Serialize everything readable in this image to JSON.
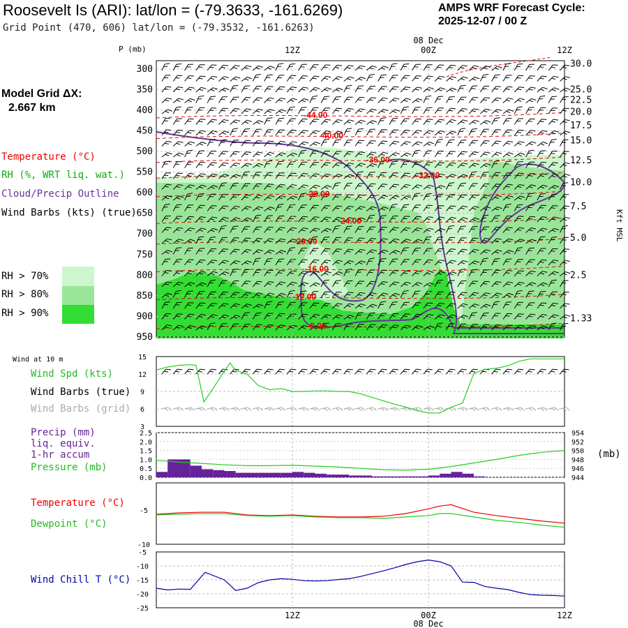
{
  "header": {
    "title": "Roosevelt Is (ARI):  lat/lon = (-79.3633, -161.6269)",
    "subtitle": "Grid Point (470, 606) lat/lon = (-79.3532, -161.6263)",
    "cycle_line1": "AMPS WRF Forecast Cycle:",
    "cycle_line2": "2025-12-07 / 00  Z",
    "grid_line1": "Model Grid ΔX:",
    "grid_line2": "2.667 km"
  },
  "legend": {
    "temperature": "Temperature (°C)",
    "rh": "RH (%, WRT liq. wat.)",
    "cloud": "Cloud/Precip Outline",
    "wind": "Wind Barbs (kts) (true)",
    "rh70": "RH > 70%",
    "rh80": "RH > 80%",
    "rh90": "RH > 90%",
    "rh70_color": "#ccf7cc",
    "rh80_color": "#99e699",
    "rh90_color": "#33dd33"
  },
  "colors": {
    "temperature": "#ee0000",
    "rh_label": "#11aa11",
    "cloud": "#663399",
    "wind_chill": "#0000aa",
    "dewpoint": "#22cc22",
    "precip": "#662299",
    "barbs_grid": "#aaaaaa"
  },
  "time_axis": {
    "top_ticks": [
      "12Z",
      "00Z",
      "12Z"
    ],
    "top_date": "08 Dec",
    "bottom_ticks": [
      "12Z",
      "00Z",
      "12Z"
    ],
    "bottom_date": "08 Dec"
  },
  "chart_data": [
    {
      "type": "heatmap",
      "name": "sounding",
      "ylabel": "P (mb)",
      "yright_label": "Kft MSL",
      "ylim": [
        950,
        280
      ],
      "pressure_ticks": [
        "300",
        "350",
        "400",
        "450",
        "500",
        "550",
        "600",
        "650",
        "700",
        "750",
        "800",
        "850",
        "900",
        "950"
      ],
      "height_ticks": [
        "30.0",
        "25.0",
        "22.5",
        "20.0",
        "17.5",
        "15.0",
        "12.5",
        "10.0",
        "7.5",
        "5.0",
        "2.5",
        "1.33"
      ],
      "height_tick_pressures": [
        288,
        350,
        376,
        404,
        437,
        474,
        522,
        575,
        634,
        710,
        800,
        905
      ],
      "x_hours": [
        0,
        36
      ],
      "temperature_labels": [
        {
          "value": "-44.00",
          "hour": 13.0,
          "p": 412
        },
        {
          "value": "-40.00",
          "hour": 14.4,
          "p": 462
        },
        {
          "value": "-36.00",
          "hour": 18.5,
          "p": 520
        },
        {
          "value": "-32.00",
          "hour": 22.9,
          "p": 558
        },
        {
          "value": "-28.00",
          "hour": 13.2,
          "p": 603
        },
        {
          "value": "-24.00",
          "hour": 16.0,
          "p": 668
        },
        {
          "value": "-20.00",
          "hour": 12.1,
          "p": 718
        },
        {
          "value": "-16.00",
          "hour": 13.1,
          "p": 785
        },
        {
          "value": "-12.00",
          "hour": 12.0,
          "p": 853
        },
        {
          "value": "-8.00",
          "hour": 13.3,
          "p": 923
        }
      ]
    },
    {
      "type": "line",
      "name": "wind",
      "label": "Wind at 10 m",
      "series_labels": [
        "Wind Spd (kts)",
        "Wind Barbs (true)",
        "Wind Barbs (grid)"
      ],
      "yticks": [
        "15",
        "12",
        "9",
        "6",
        "3"
      ],
      "ylim": [
        3,
        15
      ],
      "x": [
        0,
        1,
        2,
        3,
        3.5,
        4.2,
        5,
        6,
        6.5,
        7,
        8,
        9,
        10,
        11,
        12,
        13,
        14,
        15,
        16,
        17,
        18,
        19,
        20,
        21,
        22,
        23,
        24,
        25,
        26,
        27,
        28,
        29,
        30,
        31,
        32,
        33,
        34,
        35,
        36
      ],
      "values": [
        12.7,
        13.2,
        13.5,
        13.6,
        13.5,
        7.2,
        9.5,
        12.5,
        13.9,
        12.6,
        12.0,
        10.0,
        9.3,
        9.5,
        9.0,
        9.0,
        9.1,
        9.1,
        9.0,
        9.0,
        8.6,
        8.0,
        7.4,
        6.8,
        6.3,
        5.7,
        5.3,
        5.3,
        6.3,
        7.0,
        12.1,
        12.8,
        13.0,
        13.4,
        14.2,
        14.6,
        14.6,
        14.6,
        14.6
      ]
    },
    {
      "type": "bar",
      "name": "precip",
      "series_labels": [
        "Precip (mm)",
        "liq. equiv.",
        "1-hr accum",
        "Pressure (mb)"
      ],
      "yticks": [
        "2.5",
        "2.0",
        "1.5",
        "1.0",
        "0.5",
        "0.0"
      ],
      "ylim": [
        0,
        2.5
      ],
      "right_ticks": [
        "954",
        "952",
        "950",
        "948",
        "946",
        "944"
      ],
      "right_label": "(mb)",
      "right_ylim": [
        944,
        954
      ],
      "hours": [
        0,
        1,
        2,
        3,
        4,
        5,
        6,
        7,
        8,
        9,
        10,
        11,
        12,
        13,
        14,
        15,
        16,
        17,
        18,
        19,
        20,
        21,
        22,
        23,
        24,
        25,
        26,
        27,
        28
      ],
      "values": [
        0.3,
        1.0,
        1.0,
        0.65,
        0.45,
        0.4,
        0.35,
        0.25,
        0.25,
        0.25,
        0.25,
        0.25,
        0.3,
        0.25,
        0.2,
        0.15,
        0.15,
        0.1,
        0.1,
        0.05,
        0.05,
        0.05,
        0.05,
        0.05,
        0.1,
        0.2,
        0.3,
        0.2,
        0.05
      ],
      "pressure": {
        "x": [
          0,
          2,
          4,
          6,
          8,
          10,
          12,
          14,
          16,
          18,
          20,
          22,
          24,
          26,
          28,
          30,
          32,
          34,
          36
        ],
        "values": [
          947.8,
          947.4,
          947.1,
          946.8,
          946.6,
          946.6,
          946.7,
          946.5,
          946.3,
          946.0,
          945.7,
          945.6,
          945.8,
          946.4,
          947.2,
          948.0,
          948.9,
          949.6,
          950.0
        ]
      }
    },
    {
      "type": "line",
      "name": "temperature",
      "series_labels": [
        "Temperature (°C)",
        "Dewpoint (°C)"
      ],
      "yticks": [
        "-5",
        "-10"
      ],
      "ylim": [
        -10,
        -1
      ],
      "x": [
        0,
        2,
        4,
        6,
        8,
        10,
        12,
        14,
        16,
        18,
        20,
        22,
        24,
        25,
        26,
        28,
        30,
        32,
        34,
        36
      ],
      "series": [
        {
          "name": "Temperature (°C)",
          "values": [
            -5.6,
            -5.4,
            -5.3,
            -5.3,
            -5.7,
            -5.8,
            -5.7,
            -5.9,
            -6.0,
            -6.0,
            -5.9,
            -5.5,
            -4.8,
            -4.4,
            -4.2,
            -5.3,
            -5.8,
            -6.2,
            -6.6,
            -6.9
          ]
        },
        {
          "name": "Dewpoint (°C)",
          "values": [
            -5.7,
            -5.6,
            -5.5,
            -5.5,
            -5.8,
            -5.9,
            -5.8,
            -6.0,
            -6.1,
            -6.1,
            -6.2,
            -6.0,
            -5.8,
            -5.5,
            -5.5,
            -6.0,
            -6.5,
            -6.8,
            -7.2,
            -7.5
          ]
        }
      ]
    },
    {
      "type": "line",
      "name": "windchill",
      "series_labels": [
        "Wind Chill T (°C)"
      ],
      "yticks": [
        "-5",
        "-10",
        "-15",
        "-20",
        "-25"
      ],
      "ylim": [
        -25,
        -5
      ],
      "x": [
        0,
        1,
        2,
        3,
        4.3,
        6,
        7,
        8,
        9,
        10,
        11,
        12,
        13,
        14,
        15,
        16,
        17,
        18,
        19,
        20,
        21,
        22,
        23,
        24,
        25,
        26,
        27,
        28,
        29,
        30,
        31,
        32,
        33,
        34,
        35,
        36
      ],
      "values": [
        -18.0,
        -18.6,
        -18.3,
        -18.4,
        -12.3,
        -15.0,
        -18.8,
        -18.0,
        -16.0,
        -15.0,
        -14.6,
        -14.8,
        -15.3,
        -15.4,
        -15.3,
        -14.9,
        -14.6,
        -13.8,
        -12.8,
        -11.8,
        -10.7,
        -9.5,
        -8.5,
        -7.9,
        -8.5,
        -10.0,
        -15.8,
        -15.9,
        -17.4,
        -18.0,
        -18.5,
        -19.5,
        -20.3,
        -20.5,
        -20.6,
        -20.8
      ]
    }
  ]
}
